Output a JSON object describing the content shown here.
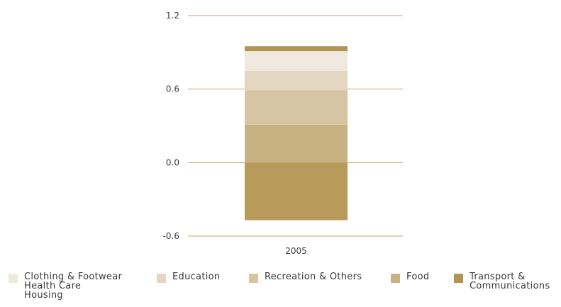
{
  "chart_data": {
    "type": "bar",
    "stacked": true,
    "categories": [
      "2005"
    ],
    "ylim": [
      -0.6,
      1.2
    ],
    "yticks": [
      "1.2",
      "0.6",
      "0.0",
      "-0.6"
    ],
    "ytick_values": [
      1.2,
      0.6,
      0.0,
      -0.6
    ],
    "grid": true,
    "legend_position": "bottom",
    "segments": [
      {
        "from": -0.47,
        "to": 0.0,
        "color": "#b89a5a"
      },
      {
        "from": 0.0,
        "to": 0.31,
        "color": "#c8b283"
      },
      {
        "from": 0.31,
        "to": 0.59,
        "color": "#d6c4a2"
      },
      {
        "from": 0.59,
        "to": 0.75,
        "color": "#e3d7c2"
      },
      {
        "from": 0.75,
        "to": 0.91,
        "color": "#efe9df"
      },
      {
        "from": 0.91,
        "to": 0.95,
        "color": "#b09652"
      }
    ],
    "legend": [
      {
        "lines": [
          "Clothing & Footwear",
          "Health Care",
          "Housing"
        ],
        "color": "#efe9df"
      },
      {
        "lines": [
          "Education"
        ],
        "color": "#e3d7c2"
      },
      {
        "lines": [
          "Recreation & Others"
        ],
        "color": "#d6c4a2"
      },
      {
        "lines": [
          "Food"
        ],
        "color": "#c8b283"
      },
      {
        "lines": [
          "Transport &",
          "Communications"
        ],
        "color": "#b09652"
      }
    ],
    "colors": {
      "grid": "#c4a76a",
      "text": "#3a3a3a"
    }
  }
}
